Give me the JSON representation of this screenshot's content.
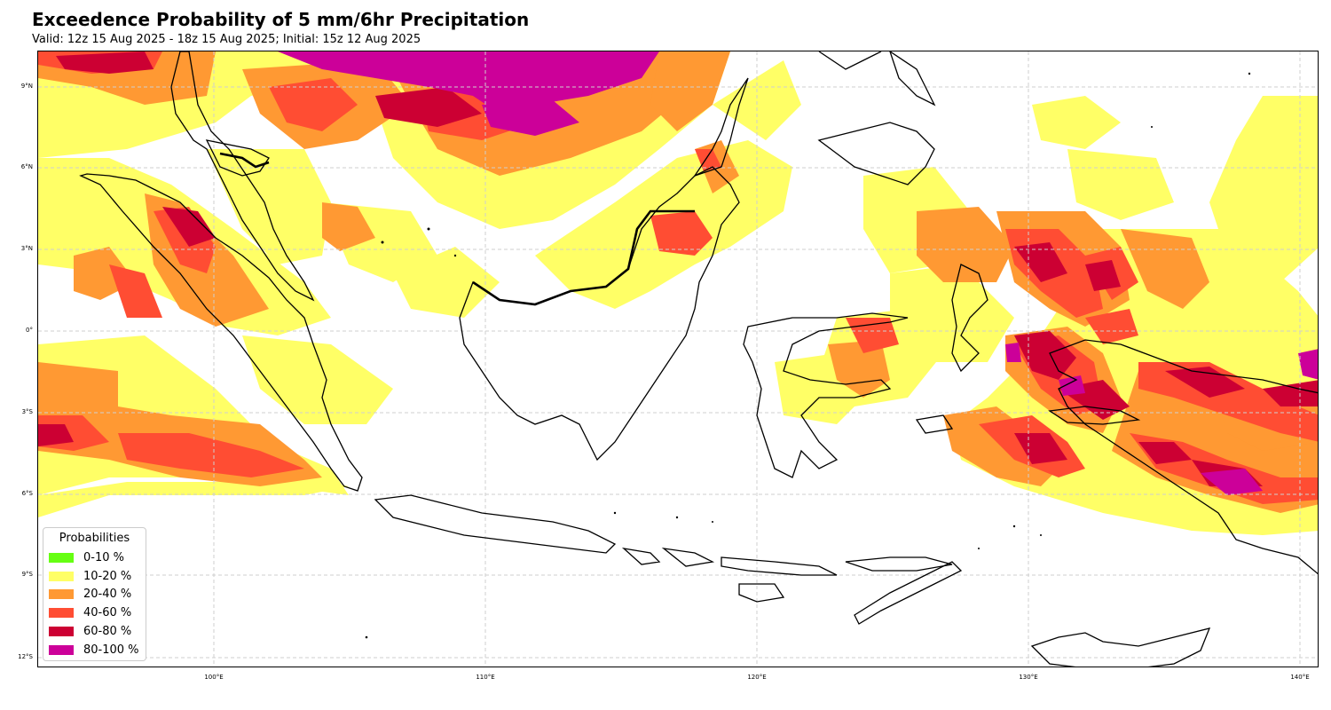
{
  "header": {
    "title": "Exceedence Probability of 5 mm/6hr Precipitation",
    "subtitle": "Valid: 12z 15 Aug 2025 - 18z 15 Aug 2025; Initial: 15z 12 Aug 2025"
  },
  "map": {
    "lon_ticks": [
      "100°E",
      "110°E",
      "120°E",
      "130°E",
      "140°E"
    ],
    "lat_ticks": [
      "9°N",
      "6°N",
      "3°N",
      "0°",
      "3°S",
      "6°S",
      "9°S",
      "12°S"
    ],
    "grid": true
  },
  "legend": {
    "title": "Probabilities",
    "items": [
      {
        "label": "0-10 %",
        "color": "#66ff12"
      },
      {
        "label": "10-20 %",
        "color": "#ffff66"
      },
      {
        "label": "20-40 %",
        "color": "#ff9933"
      },
      {
        "label": "40-60 %",
        "color": "#ff4d33"
      },
      {
        "label": "60-80 %",
        "color": "#cc0033"
      },
      {
        "label": "80-100 %",
        "color": "#cc0099"
      }
    ]
  }
}
